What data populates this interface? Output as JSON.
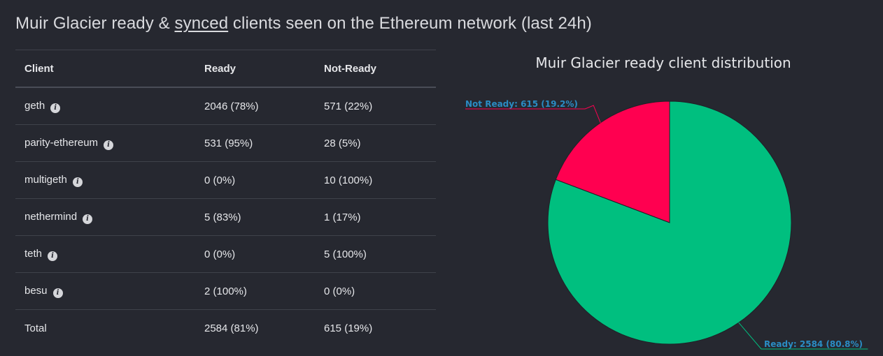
{
  "headline": {
    "prefix": "Muir Glacier ready & ",
    "link": "synced",
    "suffix": " clients seen on the Ethereum network (last 24h)"
  },
  "table": {
    "headers": [
      "Client",
      "Ready",
      "Not-Ready"
    ],
    "rows": [
      {
        "client": "geth",
        "ready": "2046 (78%)",
        "not_ready": "571 (22%)",
        "info_icon": "info-icon"
      },
      {
        "client": "parity-ethereum",
        "ready": "531 (95%)",
        "not_ready": "28 (5%)",
        "info_icon": "info-icon"
      },
      {
        "client": "multigeth",
        "ready": "0 (0%)",
        "not_ready": "10 (100%)",
        "info_icon": "info-icon"
      },
      {
        "client": "nethermind",
        "ready": "5 (83%)",
        "not_ready": "1 (17%)",
        "info_icon": "info-icon"
      },
      {
        "client": "teth",
        "ready": "0 (0%)",
        "not_ready": "5 (100%)",
        "info_icon": "info-icon"
      },
      {
        "client": "besu",
        "ready": "2 (100%)",
        "not_ready": "0 (0%)",
        "info_icon": "info-icon"
      }
    ],
    "total": {
      "client": "Total",
      "ready": "2584 (81%)",
      "not_ready": "615 (19%)"
    }
  },
  "chart_data": {
    "type": "pie",
    "title": "Muir Glacier ready client distribution",
    "slices": [
      {
        "label": "Not Ready",
        "value": 615,
        "display": "Not Ready: 615 (19.2%)",
        "color": "#ff0050"
      },
      {
        "label": "Ready",
        "value": 2584,
        "display": "Ready: 2584 (80.8%)",
        "color": "#00bf7f"
      }
    ],
    "label_color": "#2a8cc4",
    "legend": "none"
  }
}
